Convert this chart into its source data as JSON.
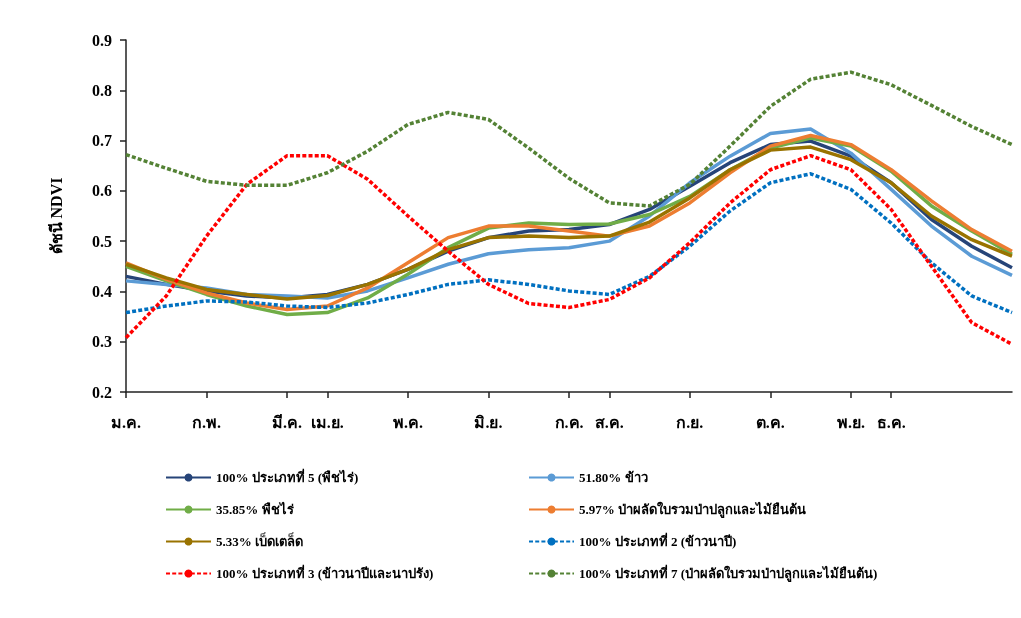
{
  "chart_data": {
    "type": "line",
    "ylabel": "ดัชนี NDVI",
    "categories": [
      "ม.ค.",
      null,
      "ก.พ.",
      null,
      "มี.ค.",
      "เม.ย.",
      null,
      "พ.ค.",
      null,
      "มิ.ย.",
      null,
      "ก.ค.",
      "ส.ค.",
      null,
      "ก.ย.",
      null,
      "ต.ค.",
      null,
      "พ.ย.",
      "ธ.ค.",
      null,
      null,
      null
    ],
    "ylim": [
      0.2,
      0.9
    ],
    "yticks": [
      0.2,
      0.3,
      0.4,
      0.5,
      0.6,
      0.7,
      0.8,
      0.9
    ],
    "grid": false,
    "legend": "bottom",
    "marker": "none",
    "series": [
      {
        "name": "100% ประเภทที่ 5 (พืชไร่)",
        "color": "#264478",
        "line_style": "solid",
        "values": [
          0.43,
          0.414,
          0.401,
          0.391,
          0.387,
          0.394,
          0.414,
          0.444,
          0.48,
          0.507,
          0.52,
          0.523,
          0.533,
          0.563,
          0.609,
          0.656,
          0.692,
          0.699,
          0.669,
          0.616,
          0.543,
          0.49,
          0.447
        ]
      },
      {
        "name": "51.80% ข้าว",
        "color": "#5b9bd5",
        "line_style": "solid",
        "values": [
          0.421,
          0.414,
          0.407,
          0.394,
          0.391,
          0.387,
          0.401,
          0.427,
          0.454,
          0.475,
          0.483,
          0.487,
          0.5,
          0.55,
          0.616,
          0.669,
          0.714,
          0.723,
          0.675,
          0.603,
          0.53,
          0.47,
          0.432
        ]
      },
      {
        "name": "35.85% พืชไร่",
        "color": "#70ad47",
        "line_style": "solid",
        "values": [
          0.45,
          0.421,
          0.394,
          0.371,
          0.354,
          0.358,
          0.387,
          0.434,
          0.487,
          0.526,
          0.536,
          0.533,
          0.534,
          0.553,
          0.589,
          0.642,
          0.685,
          0.705,
          0.689,
          0.639,
          0.57,
          0.52,
          0.474
        ]
      },
      {
        "name": "5.97% ป่าผลัดใบรวมป่าปลูกและไม้ยืนต้น",
        "color": "#ed7d31",
        "line_style": "solid",
        "values": [
          0.457,
          0.424,
          0.397,
          0.377,
          0.364,
          0.371,
          0.407,
          0.457,
          0.507,
          0.53,
          0.53,
          0.52,
          0.51,
          0.53,
          0.576,
          0.636,
          0.689,
          0.71,
          0.692,
          0.642,
          0.58,
          0.523,
          0.48
        ]
      },
      {
        "name": "5.33% เบ็ดเตล็ด",
        "color": "#997300",
        "line_style": "solid",
        "values": [
          0.454,
          0.427,
          0.404,
          0.394,
          0.385,
          0.392,
          0.414,
          0.444,
          0.483,
          0.507,
          0.51,
          0.507,
          0.51,
          0.538,
          0.586,
          0.642,
          0.681,
          0.687,
          0.662,
          0.616,
          0.55,
          0.503,
          0.47
        ]
      },
      {
        "name": "100% ประเภทที่ 2 (ข้าวนาปี)",
        "color": "#0070c0",
        "line_style": "dashed",
        "values": [
          0.358,
          0.371,
          0.381,
          0.379,
          0.371,
          0.368,
          0.377,
          0.394,
          0.414,
          0.423,
          0.414,
          0.401,
          0.394,
          0.43,
          0.49,
          0.56,
          0.616,
          0.634,
          0.603,
          0.536,
          0.457,
          0.391,
          0.358
        ]
      },
      {
        "name": "100% ประเภทที่ 3 (ข้าวนาปีและนาปรัง)",
        "color": "#ff0000",
        "line_style": "dashed",
        "values": [
          0.308,
          0.391,
          0.51,
          0.613,
          0.67,
          0.67,
          0.623,
          0.55,
          0.48,
          0.414,
          0.376,
          0.368,
          0.384,
          0.427,
          0.497,
          0.576,
          0.642,
          0.67,
          0.642,
          0.563,
          0.45,
          0.338,
          0.295
        ]
      },
      {
        "name": "100% ประเภทที่ 7 (ป่าผลัดใบรวมป่าปลูกและไม้ยืนต้น)",
        "color": "#548235",
        "line_style": "dashed",
        "values": [
          0.672,
          0.645,
          0.619,
          0.611,
          0.611,
          0.636,
          0.679,
          0.732,
          0.756,
          0.742,
          0.685,
          0.625,
          0.576,
          0.57,
          0.613,
          0.689,
          0.768,
          0.822,
          0.836,
          0.811,
          0.77,
          0.728,
          0.692
        ]
      }
    ]
  }
}
